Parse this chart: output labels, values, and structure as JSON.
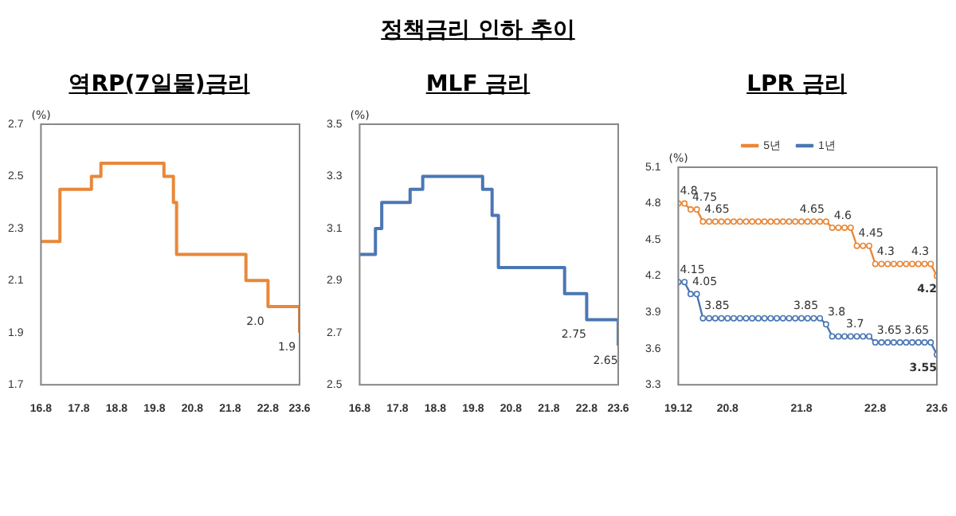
{
  "chart_data": [
    {
      "type": "other",
      "title": "정책금리 인하 추이"
    },
    {
      "type": "step",
      "title": "역RP(7일물)금리",
      "ylabel": "(%)",
      "categories": [
        "16.8",
        null,
        null,
        null,
        null,
        null,
        null,
        null,
        null,
        null,
        null,
        null,
        "17.8",
        null,
        null,
        null,
        null,
        null,
        null,
        null,
        null,
        null,
        null,
        null,
        "18.8",
        null,
        null,
        null,
        null,
        null,
        null,
        null,
        null,
        null,
        null,
        null,
        "19.8",
        null,
        null,
        null,
        null,
        null,
        null,
        null,
        null,
        null,
        null,
        null,
        "20.8",
        null,
        null,
        null,
        null,
        null,
        null,
        null,
        null,
        null,
        null,
        null,
        "21.8",
        null,
        null,
        null,
        null,
        null,
        null,
        null,
        null,
        null,
        null,
        null,
        "22.8",
        null,
        null,
        null,
        null,
        null,
        null,
        null,
        null,
        null,
        "23.6"
      ],
      "values": [
        2.25,
        2.25,
        2.25,
        2.25,
        2.25,
        2.25,
        2.45,
        2.45,
        2.45,
        2.45,
        2.45,
        2.45,
        2.45,
        2.45,
        2.45,
        2.45,
        2.5,
        2.5,
        2.5,
        2.55,
        2.55,
        2.55,
        2.55,
        2.55,
        2.55,
        2.55,
        2.55,
        2.55,
        2.55,
        2.55,
        2.55,
        2.55,
        2.55,
        2.55,
        2.55,
        2.55,
        2.55,
        2.55,
        2.55,
        2.5,
        2.5,
        2.5,
        2.4,
        2.2,
        2.2,
        2.2,
        2.2,
        2.2,
        2.2,
        2.2,
        2.2,
        2.2,
        2.2,
        2.2,
        2.2,
        2.2,
        2.2,
        2.2,
        2.2,
        2.2,
        2.2,
        2.2,
        2.2,
        2.2,
        2.2,
        2.1,
        2.1,
        2.1,
        2.1,
        2.1,
        2.1,
        2.1,
        2.0,
        2.0,
        2.0,
        2.0,
        2.0,
        2.0,
        2.0,
        2.0,
        2.0,
        2.0,
        1.9
      ],
      "value_labels": [
        null,
        null,
        null,
        null,
        null,
        null,
        null,
        null,
        null,
        null,
        null,
        null,
        null,
        null,
        null,
        null,
        null,
        null,
        null,
        null,
        null,
        null,
        null,
        null,
        null,
        null,
        null,
        null,
        null,
        null,
        null,
        null,
        null,
        null,
        null,
        null,
        null,
        null,
        null,
        null,
        null,
        null,
        null,
        null,
        null,
        null,
        null,
        null,
        null,
        null,
        null,
        null,
        null,
        null,
        null,
        null,
        null,
        null,
        null,
        null,
        null,
        null,
        null,
        null,
        null,
        null,
        null,
        null,
        null,
        null,
        null,
        null,
        "2.0",
        null,
        null,
        null,
        null,
        null,
        null,
        null,
        null,
        null,
        "1.9"
      ],
      "color": "#e8883a",
      "ylim": [
        1.7,
        2.7
      ],
      "yticks": [
        1.7,
        1.9,
        2.1,
        2.3,
        2.5,
        2.7
      ],
      "grid": false,
      "legend": false
    },
    {
      "type": "step",
      "title": "MLF 금리",
      "ylabel": "(%)",
      "categories": [
        "16.8",
        null,
        null,
        null,
        null,
        null,
        null,
        null,
        null,
        null,
        null,
        null,
        "17.8",
        null,
        null,
        null,
        null,
        null,
        null,
        null,
        null,
        null,
        null,
        null,
        "18.8",
        null,
        null,
        null,
        null,
        null,
        null,
        null,
        null,
        null,
        null,
        null,
        "19.8",
        null,
        null,
        null,
        null,
        null,
        null,
        null,
        null,
        null,
        null,
        null,
        "20.8",
        null,
        null,
        null,
        null,
        null,
        null,
        null,
        null,
        null,
        null,
        null,
        "21.8",
        null,
        null,
        null,
        null,
        null,
        null,
        null,
        null,
        null,
        null,
        null,
        "22.8",
        null,
        null,
        null,
        null,
        null,
        null,
        null,
        null,
        null,
        "23.6"
      ],
      "values": [
        3.0,
        3.0,
        3.0,
        3.0,
        3.0,
        3.1,
        3.1,
        3.2,
        3.2,
        3.2,
        3.2,
        3.2,
        3.2,
        3.2,
        3.2,
        3.2,
        3.25,
        3.25,
        3.25,
        3.25,
        3.3,
        3.3,
        3.3,
        3.3,
        3.3,
        3.3,
        3.3,
        3.3,
        3.3,
        3.3,
        3.3,
        3.3,
        3.3,
        3.3,
        3.3,
        3.3,
        3.3,
        3.3,
        3.3,
        3.25,
        3.25,
        3.25,
        3.15,
        3.15,
        2.95,
        2.95,
        2.95,
        2.95,
        2.95,
        2.95,
        2.95,
        2.95,
        2.95,
        2.95,
        2.95,
        2.95,
        2.95,
        2.95,
        2.95,
        2.95,
        2.95,
        2.95,
        2.95,
        2.95,
        2.95,
        2.85,
        2.85,
        2.85,
        2.85,
        2.85,
        2.85,
        2.85,
        2.75,
        2.75,
        2.75,
        2.75,
        2.75,
        2.75,
        2.75,
        2.75,
        2.75,
        2.75,
        2.65
      ],
      "value_labels": [
        null,
        null,
        null,
        null,
        null,
        null,
        null,
        null,
        null,
        null,
        null,
        null,
        null,
        null,
        null,
        null,
        null,
        null,
        null,
        null,
        null,
        null,
        null,
        null,
        null,
        null,
        null,
        null,
        null,
        null,
        null,
        null,
        null,
        null,
        null,
        null,
        null,
        null,
        null,
        null,
        null,
        null,
        null,
        null,
        null,
        null,
        null,
        null,
        null,
        null,
        null,
        null,
        null,
        null,
        null,
        null,
        null,
        null,
        null,
        null,
        null,
        null,
        null,
        null,
        null,
        null,
        null,
        null,
        null,
        null,
        null,
        null,
        "2.75",
        null,
        null,
        null,
        null,
        null,
        null,
        null,
        null,
        null,
        "2.65"
      ],
      "color": "#4a77b4",
      "ylim": [
        2.5,
        3.5
      ],
      "yticks": [
        2.5,
        2.7,
        2.9,
        3.1,
        3.3,
        3.5
      ],
      "grid": false,
      "legend": false
    },
    {
      "type": "line",
      "title": "LPR 금리",
      "ylabel": "(%)",
      "categories": [
        "19.12",
        null,
        null,
        null,
        null,
        null,
        null,
        null,
        "20.8",
        null,
        null,
        null,
        null,
        null,
        null,
        null,
        null,
        null,
        null,
        null,
        "21.8",
        null,
        null,
        null,
        null,
        null,
        null,
        null,
        null,
        null,
        null,
        null,
        "22.8",
        null,
        null,
        null,
        null,
        null,
        null,
        null,
        null,
        null,
        "23.6"
      ],
      "series": [
        {
          "name": "5년",
          "color": "#e8883a",
          "values": [
            4.8,
            4.8,
            4.75,
            4.75,
            4.65,
            4.65,
            4.65,
            4.65,
            4.65,
            4.65,
            4.65,
            4.65,
            4.65,
            4.65,
            4.65,
            4.65,
            4.65,
            4.65,
            4.65,
            4.65,
            4.65,
            4.65,
            4.65,
            4.65,
            4.65,
            4.6,
            4.6,
            4.6,
            4.6,
            4.45,
            4.45,
            4.45,
            4.3,
            4.3,
            4.3,
            4.3,
            4.3,
            4.3,
            4.3,
            4.3,
            4.3,
            4.3,
            4.2
          ],
          "value_labels": [
            "4.8",
            null,
            "4.75",
            null,
            "4.65",
            null,
            null,
            null,
            null,
            null,
            null,
            null,
            null,
            null,
            null,
            null,
            null,
            null,
            null,
            null,
            null,
            null,
            null,
            null,
            "4.65",
            "4.6",
            null,
            null,
            null,
            "4.45",
            null,
            null,
            "4.3",
            null,
            null,
            null,
            null,
            null,
            null,
            null,
            null,
            "4.3",
            "4.2"
          ]
        },
        {
          "name": "1년",
          "color": "#4a77b4",
          "values": [
            4.15,
            4.15,
            4.05,
            4.05,
            3.85,
            3.85,
            3.85,
            3.85,
            3.85,
            3.85,
            3.85,
            3.85,
            3.85,
            3.85,
            3.85,
            3.85,
            3.85,
            3.85,
            3.85,
            3.85,
            3.85,
            3.85,
            3.85,
            3.85,
            3.8,
            3.7,
            3.7,
            3.7,
            3.7,
            3.7,
            3.7,
            3.7,
            3.65,
            3.65,
            3.65,
            3.65,
            3.65,
            3.65,
            3.65,
            3.65,
            3.65,
            3.65,
            3.55
          ],
          "value_labels": [
            "4.15",
            null,
            "4.05",
            null,
            "3.85",
            null,
            null,
            null,
            null,
            null,
            null,
            null,
            null,
            null,
            null,
            null,
            null,
            null,
            null,
            null,
            null,
            null,
            null,
            "3.85",
            "3.8",
            null,
            null,
            "3.7",
            null,
            null,
            null,
            null,
            "3.65",
            null,
            null,
            null,
            null,
            null,
            null,
            null,
            null,
            "3.65",
            "3.55"
          ]
        }
      ],
      "ylim": [
        3.3,
        5.1
      ],
      "yticks": [
        3.3,
        3.6,
        3.9,
        4.2,
        4.5,
        4.8,
        5.1
      ],
      "grid": false,
      "legend": "top",
      "marker": "circle"
    }
  ]
}
